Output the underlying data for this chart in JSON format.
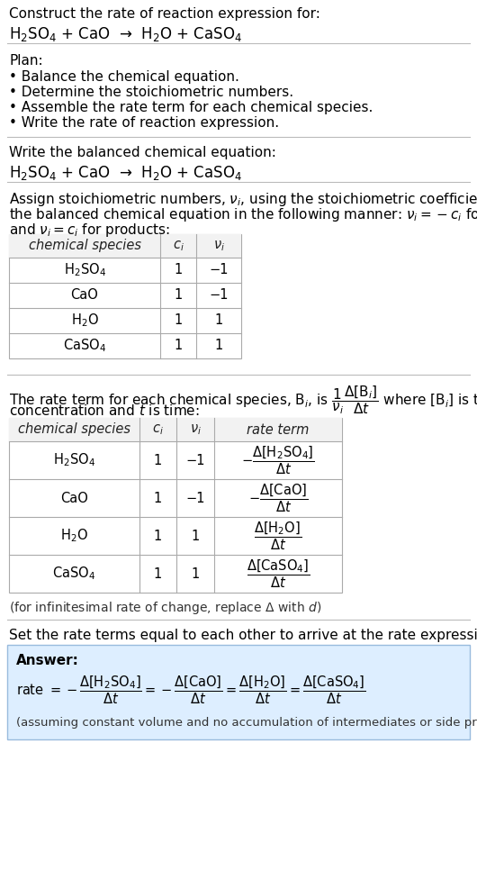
{
  "bg_color": "#ffffff",
  "text_color": "#000000",
  "answer_bg": "#ddeeff",
  "divider_color": "#bbbbbb",
  "table_border": "#aaaaaa",
  "table_header_bg": "#f2f2f2",
  "title_line1": "Construct the rate of reaction expression for:",
  "title_line2": "H$_2$SO$_4$ + CaO  →  H$_2$O + CaSO$_4$",
  "plan_header": "Plan:",
  "plan_items": [
    "• Balance the chemical equation.",
    "• Determine the stoichiometric numbers.",
    "• Assemble the rate term for each chemical species.",
    "• Write the rate of reaction expression."
  ],
  "balanced_header": "Write the balanced chemical equation:",
  "balanced_eq": "H$_2$SO$_4$ + CaO  →  H$_2$O + CaSO$_4$",
  "assign_text1": "Assign stoichiometric numbers, $\\nu_i$, using the stoichiometric coefficients, $c_i$, from",
  "assign_text2": "the balanced chemical equation in the following manner: $\\nu_i = -c_i$ for reactants",
  "assign_text3": "and $\\nu_i = c_i$ for products:",
  "table1_headers": [
    "chemical species",
    "$c_i$",
    "$\\nu_i$"
  ],
  "table1_rows": [
    [
      "H$_2$SO$_4$",
      "1",
      "−1"
    ],
    [
      "CaO",
      "1",
      "−1"
    ],
    [
      "H$_2$O",
      "1",
      "1"
    ],
    [
      "CaSO$_4$",
      "1",
      "1"
    ]
  ],
  "rate_text1": "The rate term for each chemical species, B$_i$, is $\\dfrac{1}{\\nu_i}\\dfrac{\\Delta[\\mathrm{B}_i]}{\\Delta t}$ where [B$_i$] is the amount",
  "rate_text2": "concentration and $t$ is time:",
  "table2_headers": [
    "chemical species",
    "$c_i$",
    "$\\nu_i$",
    "rate term"
  ],
  "table2_rows": [
    [
      "H$_2$SO$_4$",
      "1",
      "−1",
      "$-\\dfrac{\\Delta[\\mathrm{H_2SO_4}]}{\\Delta t}$"
    ],
    [
      "CaO",
      "1",
      "−1",
      "$-\\dfrac{\\Delta[\\mathrm{CaO}]}{\\Delta t}$"
    ],
    [
      "H$_2$O",
      "1",
      "1",
      "$\\dfrac{\\Delta[\\mathrm{H_2O}]}{\\Delta t}$"
    ],
    [
      "CaSO$_4$",
      "1",
      "1",
      "$\\dfrac{\\Delta[\\mathrm{CaSO_4}]}{\\Delta t}$"
    ]
  ],
  "infinitesimal_note": "(for infinitesimal rate of change, replace Δ with $d$)",
  "set_rate_text": "Set the rate terms equal to each other to arrive at the rate expression:",
  "answer_label": "Answer:",
  "assumption_note": "(assuming constant volume and no accumulation of intermediates or side products)"
}
